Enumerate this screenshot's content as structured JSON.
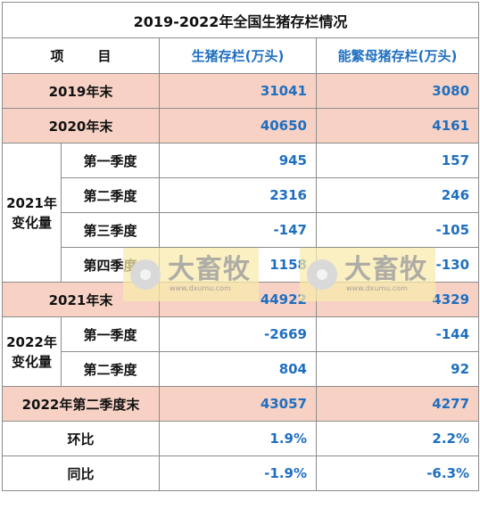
{
  "title": "2019-2022年全国生猪存栏情况",
  "header": {
    "item_left": "项",
    "item_right": "目",
    "col_pig": "生猪存栏(万头)",
    "col_sow": "能繁母猪存栏(万头)"
  },
  "rows": {
    "y2019": {
      "label": "2019年末",
      "pig": "31041",
      "sow": "3080"
    },
    "y2020": {
      "label": "2020年末",
      "pig": "40650",
      "sow": "4161"
    },
    "g2021": {
      "group_line1": "2021年",
      "group_line2": "变化量",
      "q1": {
        "label": "第一季度",
        "pig": "945",
        "sow": "157"
      },
      "q2": {
        "label": "第二季度",
        "pig": "2316",
        "sow": "246"
      },
      "q3": {
        "label": "第三季度",
        "pig": "-147",
        "sow": "-105"
      },
      "q4": {
        "label": "第四季度",
        "pig": "1158",
        "sow": "-130"
      }
    },
    "y2021": {
      "label": "2021年末",
      "pig": "44922",
      "sow": "4329"
    },
    "g2022": {
      "group_line1": "2022年",
      "group_line2": "变化量",
      "q1": {
        "label": "第一季度",
        "pig": "-2669",
        "sow": "-144"
      },
      "q2": {
        "label": "第二季度",
        "pig": "804",
        "sow": "92"
      }
    },
    "q2end2022": {
      "label": "2022年第二季度末",
      "pig": "43057",
      "sow": "4277"
    },
    "mom": {
      "label": "环比",
      "pig": "1.9%",
      "sow": "2.2%"
    },
    "yoy": {
      "label": "同比",
      "pig": "-1.9%",
      "sow": "-6.3%"
    }
  },
  "watermark": {
    "brand": "大畜牧",
    "url": "www.dxumu.com"
  },
  "colors": {
    "blue": "#1f6fc0",
    "pink": "#f7d2c4",
    "border": "#8c8c8c"
  }
}
